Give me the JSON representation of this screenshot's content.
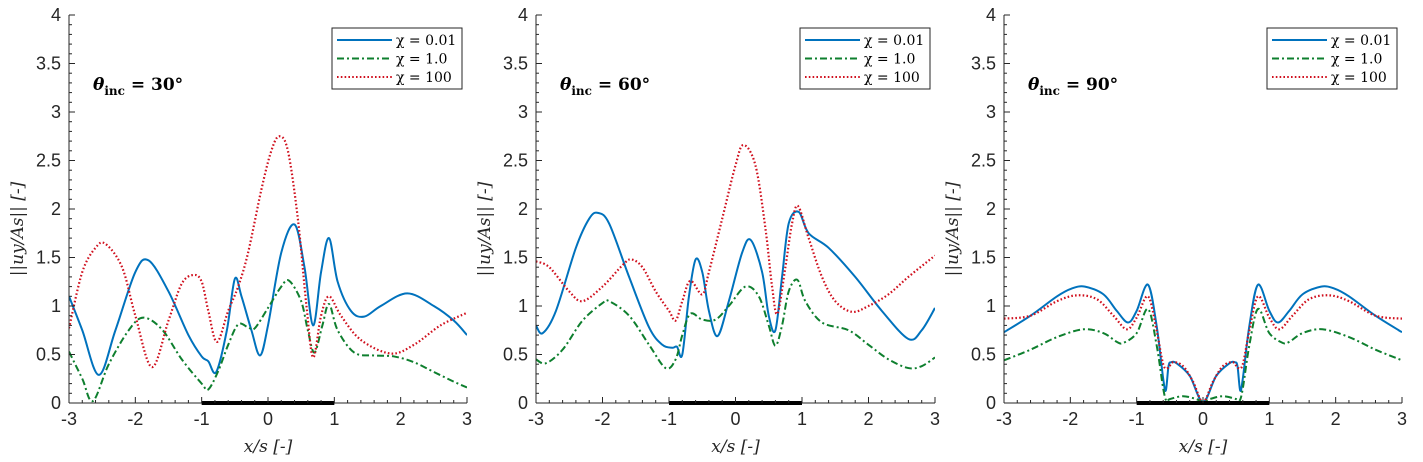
{
  "colors": {
    "chi_001": "#0072BD",
    "chi_1": "#0E7F2E",
    "chi_100": "#D0101E",
    "axis": "#262626",
    "plate": "#000000"
  },
  "chart_data": [
    {
      "type": "line",
      "annotation": "θinc = 30°",
      "annotation_parts": {
        "symbol": "θ",
        "subscript": "inc",
        "rest": " = 30°"
      },
      "xlabel": "x/s [-]",
      "ylabel": "||uy/As|| [-]",
      "xlim": [
        -3,
        3
      ],
      "ylim": [
        0,
        4
      ],
      "xticks": [
        "-3",
        "-2",
        "-1",
        "0",
        "1",
        "2",
        "3"
      ],
      "yticks": [
        "0",
        "0.5",
        "1",
        "1.5",
        "2",
        "2.5",
        "3",
        "3.5",
        "4"
      ],
      "legend_position": "top-right",
      "plate_range": [
        -1,
        1
      ],
      "series": [
        {
          "name": "χ = 0.01",
          "style": "solid",
          "x": [
            -3,
            -2.8,
            -2.55,
            -2.3,
            -2.0,
            -1.8,
            -1.5,
            -1.2,
            -1.0,
            -0.9,
            -0.78,
            -0.62,
            -0.5,
            -0.4,
            -0.25,
            -0.12,
            0.0,
            0.2,
            0.4,
            0.55,
            0.68,
            0.8,
            0.92,
            1.05,
            1.25,
            1.45,
            1.7,
            2.1,
            2.5,
            2.8,
            3.0
          ],
          "y": [
            1.1,
            0.75,
            0.29,
            0.75,
            1.35,
            1.47,
            1.15,
            0.7,
            0.48,
            0.43,
            0.32,
            0.75,
            1.28,
            1.1,
            0.75,
            0.49,
            0.8,
            1.55,
            1.84,
            1.4,
            0.8,
            1.35,
            1.7,
            1.25,
            0.95,
            0.89,
            1.0,
            1.13,
            1.0,
            0.85,
            0.7
          ]
        },
        {
          "name": "χ = 1.0",
          "style": "dashdot",
          "x": [
            -3,
            -2.8,
            -2.64,
            -2.4,
            -2.1,
            -1.88,
            -1.6,
            -1.3,
            -1.0,
            -0.9,
            -0.75,
            -0.6,
            -0.45,
            -0.3,
            -0.2,
            0.0,
            0.2,
            0.32,
            0.5,
            0.6,
            0.7,
            0.82,
            0.92,
            1.05,
            1.3,
            1.6,
            1.9,
            2.2,
            2.5,
            2.8,
            3.0
          ],
          "y": [
            0.53,
            0.25,
            0.02,
            0.4,
            0.75,
            0.88,
            0.76,
            0.45,
            0.2,
            0.14,
            0.33,
            0.6,
            0.81,
            0.78,
            0.77,
            0.98,
            1.2,
            1.26,
            1.05,
            0.75,
            0.52,
            0.8,
            1.02,
            0.75,
            0.52,
            0.49,
            0.48,
            0.42,
            0.32,
            0.22,
            0.16
          ]
        },
        {
          "name": "χ = 100",
          "style": "dotted",
          "x": [
            -3,
            -2.8,
            -2.6,
            -2.45,
            -2.2,
            -2.0,
            -1.75,
            -1.5,
            -1.3,
            -1.12,
            -1.0,
            -0.9,
            -0.77,
            -0.6,
            -0.45,
            -0.3,
            -0.1,
            0.05,
            0.17,
            0.3,
            0.45,
            0.58,
            0.68,
            0.8,
            0.92,
            1.1,
            1.4,
            1.85,
            2.2,
            2.6,
            3.0
          ],
          "y": [
            0.77,
            1.35,
            1.6,
            1.64,
            1.4,
            0.9,
            0.37,
            0.85,
            1.23,
            1.32,
            1.25,
            0.95,
            0.63,
            0.95,
            1.2,
            1.55,
            2.2,
            2.6,
            2.75,
            2.6,
            1.9,
            1.0,
            0.47,
            0.9,
            1.1,
            0.9,
            0.65,
            0.51,
            0.6,
            0.8,
            0.93
          ]
        }
      ]
    },
    {
      "type": "line",
      "annotation": "θinc = 60°",
      "annotation_parts": {
        "symbol": "θ",
        "subscript": "inc",
        "rest": " = 60°"
      },
      "xlabel": "x/s [-]",
      "ylabel": "||uy/As|| [-]",
      "xlim": [
        -3,
        3
      ],
      "ylim": [
        0,
        4
      ],
      "xticks": [
        "-3",
        "-2",
        "-1",
        "0",
        "1",
        "2",
        "3"
      ],
      "yticks": [
        "0",
        "0.5",
        "1",
        "1.5",
        "2",
        "2.5",
        "3",
        "3.5",
        "4"
      ],
      "legend_position": "top-right",
      "plate_range": [
        -1,
        1
      ],
      "series": [
        {
          "name": "χ = 0.01",
          "style": "solid",
          "x": [
            -3,
            -2.9,
            -2.7,
            -2.4,
            -2.2,
            -2.07,
            -1.9,
            -1.6,
            -1.3,
            -1.1,
            -0.95,
            -0.88,
            -0.8,
            -0.7,
            -0.6,
            -0.5,
            -0.4,
            -0.27,
            -0.1,
            0.1,
            0.23,
            0.4,
            0.5,
            0.6,
            0.7,
            0.8,
            0.95,
            1.1,
            1.4,
            1.8,
            2.2,
            2.6,
            2.8,
            3.0
          ],
          "y": [
            0.8,
            0.72,
            0.95,
            1.6,
            1.9,
            1.96,
            1.85,
            1.3,
            0.78,
            0.6,
            0.57,
            0.58,
            0.5,
            1.1,
            1.48,
            1.35,
            0.95,
            0.69,
            1.05,
            1.55,
            1.68,
            1.35,
            0.9,
            0.75,
            1.3,
            1.85,
            1.97,
            1.75,
            1.6,
            1.3,
            0.95,
            0.66,
            0.75,
            0.98
          ]
        },
        {
          "name": "χ = 1.0",
          "style": "dashdot",
          "x": [
            -3,
            -2.85,
            -2.6,
            -2.3,
            -2.0,
            -1.9,
            -1.6,
            -1.3,
            -1.05,
            -0.9,
            -0.8,
            -0.68,
            -0.5,
            -0.3,
            -0.1,
            0.15,
            0.35,
            0.5,
            0.6,
            0.7,
            0.8,
            0.93,
            1.05,
            1.3,
            1.7,
            2.0,
            2.3,
            2.6,
            2.8,
            3.0
          ],
          "y": [
            0.45,
            0.41,
            0.55,
            0.85,
            1.03,
            1.05,
            0.9,
            0.6,
            0.36,
            0.45,
            0.7,
            0.92,
            0.86,
            0.86,
            1.0,
            1.2,
            1.1,
            0.8,
            0.59,
            0.8,
            1.15,
            1.27,
            1.05,
            0.83,
            0.75,
            0.6,
            0.45,
            0.36,
            0.38,
            0.47
          ]
        },
        {
          "name": "χ = 100",
          "style": "dotted",
          "x": [
            -3,
            -2.8,
            -2.5,
            -2.3,
            -2.0,
            -1.7,
            -1.57,
            -1.4,
            -1.2,
            -1.0,
            -0.9,
            -0.8,
            -0.68,
            -0.5,
            -0.4,
            -0.2,
            0.0,
            0.12,
            0.3,
            0.45,
            0.55,
            0.63,
            0.75,
            0.85,
            0.94,
            1.1,
            1.3,
            1.5,
            1.75,
            2.0,
            2.3,
            2.6,
            3.0
          ],
          "y": [
            1.46,
            1.4,
            1.15,
            1.05,
            1.2,
            1.42,
            1.48,
            1.4,
            1.15,
            0.95,
            0.85,
            1.05,
            1.26,
            1.12,
            1.35,
            1.9,
            2.45,
            2.66,
            2.45,
            1.8,
            1.2,
            0.92,
            1.4,
            1.85,
            2.03,
            1.7,
            1.3,
            1.05,
            0.94,
            1.0,
            1.12,
            1.3,
            1.52
          ]
        }
      ]
    },
    {
      "type": "line",
      "annotation": "θinc = 90°",
      "annotation_parts": {
        "symbol": "θ",
        "subscript": "inc",
        "rest": " = 90°"
      },
      "xlabel": "x/s [-]",
      "ylabel": "||uy/As|| [-]",
      "xlim": [
        -3,
        3
      ],
      "ylim": [
        0,
        4
      ],
      "xticks": [
        "-3",
        "-2",
        "-1",
        "0",
        "1",
        "2",
        "3"
      ],
      "yticks": [
        "0",
        "0.5",
        "1",
        "1.5",
        "2",
        "2.5",
        "3",
        "3.5",
        "4"
      ],
      "legend_position": "top-right",
      "plate_range": [
        -1,
        1
      ],
      "series": [
        {
          "name": "χ = 0.01",
          "style": "solid",
          "x": [
            -3,
            -2.6,
            -2.2,
            -1.98,
            -1.78,
            -1.5,
            -1.3,
            -1.13,
            -1.0,
            -0.83,
            -0.7,
            -0.6,
            -0.56,
            -0.52,
            -0.48,
            -0.4,
            -0.2,
            0.0,
            0.2,
            0.4,
            0.48,
            0.52,
            0.56,
            0.6,
            0.7,
            0.83,
            1.0,
            1.13,
            1.3,
            1.5,
            1.78,
            1.98,
            2.2,
            2.6,
            3.0
          ],
          "y": [
            0.73,
            0.9,
            1.1,
            1.18,
            1.2,
            1.12,
            0.95,
            0.83,
            0.95,
            1.22,
            0.8,
            0.25,
            0.13,
            0.38,
            0.42,
            0.41,
            0.28,
            0.01,
            0.28,
            0.41,
            0.42,
            0.38,
            0.13,
            0.25,
            0.8,
            1.22,
            0.95,
            0.83,
            0.95,
            1.12,
            1.2,
            1.18,
            1.1,
            0.9,
            0.73
          ]
        },
        {
          "name": "χ = 1.0",
          "style": "dashdot",
          "x": [
            -3,
            -2.6,
            -2.2,
            -1.8,
            -1.5,
            -1.3,
            -1.2,
            -1.0,
            -0.83,
            -0.7,
            -0.6,
            -0.55,
            -0.5,
            -0.3,
            -0.1,
            0.0,
            0.1,
            0.3,
            0.5,
            0.55,
            0.6,
            0.7,
            0.83,
            1.0,
            1.2,
            1.3,
            1.5,
            1.8,
            2.2,
            2.6,
            3.0
          ],
          "y": [
            0.44,
            0.55,
            0.68,
            0.76,
            0.72,
            0.63,
            0.62,
            0.72,
            0.97,
            0.6,
            0.15,
            0.02,
            0.04,
            0.07,
            0.04,
            0.01,
            0.04,
            0.07,
            0.04,
            0.02,
            0.15,
            0.6,
            0.97,
            0.72,
            0.62,
            0.63,
            0.72,
            0.76,
            0.68,
            0.55,
            0.44
          ]
        },
        {
          "name": "χ = 100",
          "style": "dotted",
          "x": [
            -3,
            -2.6,
            -2.2,
            -1.9,
            -1.6,
            -1.35,
            -1.15,
            -1.0,
            -0.83,
            -0.7,
            -0.6,
            -0.53,
            -0.45,
            -0.3,
            -0.15,
            0.0,
            0.15,
            0.3,
            0.45,
            0.53,
            0.6,
            0.7,
            0.83,
            1.0,
            1.15,
            1.35,
            1.6,
            1.9,
            2.2,
            2.6,
            3.0
          ],
          "y": [
            0.87,
            0.9,
            1.05,
            1.11,
            1.07,
            0.9,
            0.76,
            0.88,
            1.1,
            0.75,
            0.4,
            0.36,
            0.42,
            0.38,
            0.22,
            0.01,
            0.22,
            0.38,
            0.42,
            0.36,
            0.4,
            0.75,
            1.1,
            0.88,
            0.76,
            0.9,
            1.07,
            1.11,
            1.05,
            0.9,
            0.87
          ]
        }
      ]
    }
  ]
}
